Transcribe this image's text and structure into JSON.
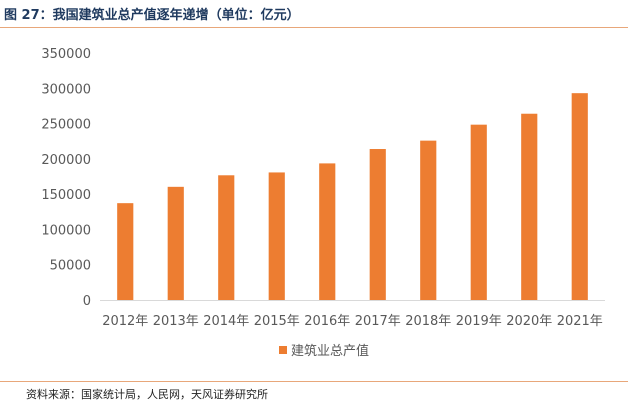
{
  "figure": {
    "title": "图 27：我国建筑业总产值逐年递增（单位：亿元）",
    "source": "资料来源：国家统计局，人民网，天风证券研究所"
  },
  "chart_data": {
    "type": "bar",
    "categories": [
      "2012年",
      "2013年",
      "2014年",
      "2015年",
      "2016年",
      "2017年",
      "2018年",
      "2019年",
      "2020年",
      "2021年"
    ],
    "series": [
      {
        "name": "建筑业总产值",
        "values": [
          137218,
          160366,
          176713,
          180757,
          193567,
          213944,
          225817,
          248446,
          263947,
          293079
        ],
        "color": "#ed7d31"
      }
    ],
    "yticks": [
      "0",
      "50000",
      "100000",
      "150000",
      "200000",
      "250000",
      "300000",
      "350000"
    ],
    "ylim": [
      0,
      350000
    ],
    "xlabel": "",
    "ylabel": "",
    "grid": false,
    "legend": "bottom"
  }
}
